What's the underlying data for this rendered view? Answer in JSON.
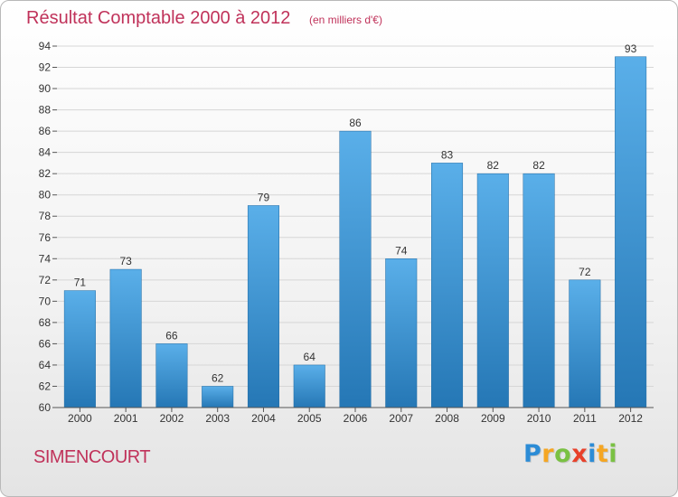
{
  "title": "Résultat Comptable 2000 à 2012",
  "subtitle": "(en milliers d'€)",
  "commune": "SIMENCOURT",
  "brand": {
    "letters": [
      "P",
      "r",
      "o",
      "x",
      "i",
      "t",
      "i"
    ],
    "colors": [
      "#2c8cd6",
      "#f5a623",
      "#7ac143",
      "#e8402a",
      "#2c8cd6",
      "#f5a623",
      "#7ac143"
    ]
  },
  "colors": {
    "title": "#c0325a",
    "bar_top": "#5aafe9",
    "bar_bottom": "#2577b5",
    "grid": "#d6d6d6"
  },
  "chart_data": {
    "type": "bar",
    "title": "Résultat Comptable 2000 à 2012",
    "subtitle": "(en milliers d'€)",
    "categories": [
      "2000",
      "2001",
      "2002",
      "2003",
      "2004",
      "2005",
      "2006",
      "2007",
      "2008",
      "2009",
      "2010",
      "2011",
      "2012"
    ],
    "values": [
      71,
      73,
      66,
      62,
      79,
      64,
      86,
      74,
      83,
      82,
      82,
      72,
      93
    ],
    "ylim": [
      60,
      94
    ],
    "ytick_step": 2,
    "xlabel": "",
    "ylabel": "",
    "grid": true
  }
}
